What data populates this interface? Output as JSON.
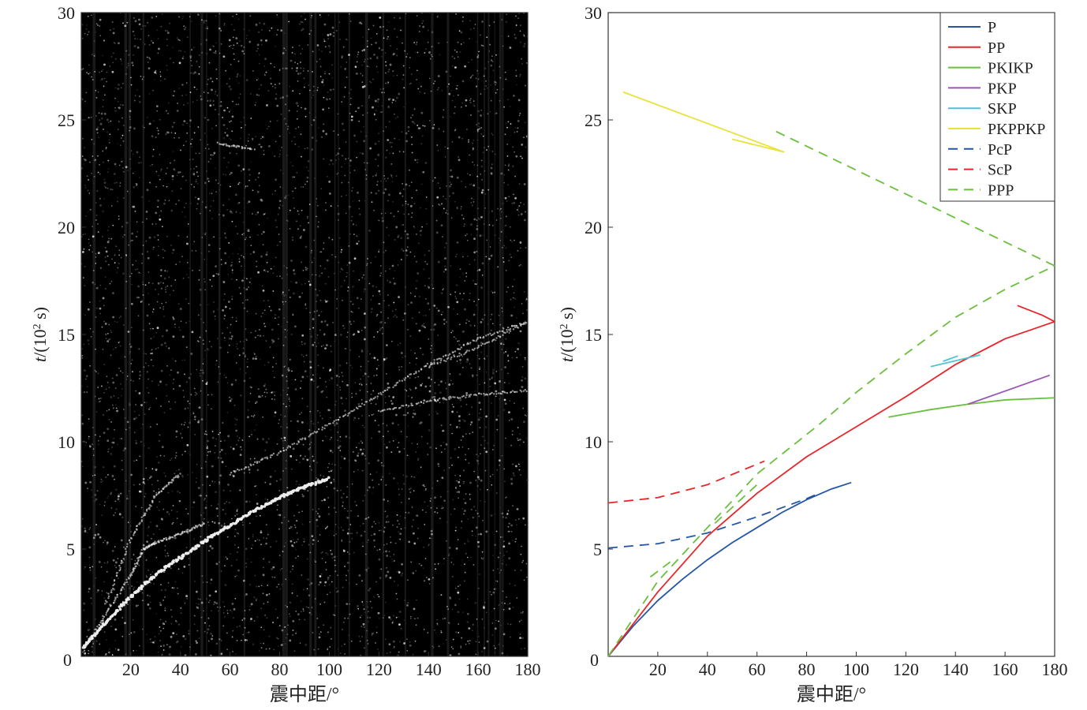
{
  "chart_data": [
    {
      "type": "heatmap",
      "title": "",
      "xlabel": "震中距/°",
      "ylabel_italic": "t",
      "ylabel_rest": "/(10",
      "ylabel_sup": "2",
      "ylabel_end": " s)",
      "xlim": [
        0,
        180
      ],
      "ylim": [
        0,
        30
      ],
      "xticks": [
        20,
        40,
        60,
        80,
        100,
        120,
        140,
        160,
        180
      ],
      "yticks": [
        0,
        5,
        10,
        15,
        20,
        25,
        30
      ],
      "background": "#000000",
      "bright_tracks": [
        [
          [
            1,
            0.4
          ],
          [
            10,
            1.6
          ],
          [
            20,
            2.8
          ],
          [
            30,
            3.8
          ],
          [
            40,
            4.6
          ],
          [
            50,
            5.4
          ],
          [
            60,
            6.1
          ],
          [
            70,
            6.8
          ],
          [
            80,
            7.4
          ],
          [
            90,
            7.9
          ],
          [
            100,
            8.3
          ]
        ],
        [
          [
            1,
            0.3
          ],
          [
            10,
            2.0
          ],
          [
            20,
            3.8
          ],
          [
            25,
            5.0
          ],
          [
            30,
            5.3
          ],
          [
            40,
            5.7
          ],
          [
            50,
            6.2
          ]
        ],
        [
          [
            10,
            2.5
          ],
          [
            20,
            5.5
          ],
          [
            30,
            7.5
          ],
          [
            40,
            8.5
          ]
        ],
        [
          [
            120,
            11.4
          ],
          [
            140,
            11.9
          ],
          [
            160,
            12.2
          ],
          [
            180,
            12.4
          ]
        ],
        [
          [
            60,
            8.5
          ],
          [
            80,
            9.5
          ],
          [
            100,
            10.8
          ],
          [
            120,
            12.2
          ],
          [
            140,
            13.6
          ],
          [
            160,
            14.8
          ],
          [
            180,
            15.6
          ]
        ],
        [
          [
            140,
            13.5
          ],
          [
            160,
            14.4
          ],
          [
            180,
            15.6
          ]
        ],
        [
          [
            55,
            23.9
          ],
          [
            70,
            23.6
          ]
        ]
      ]
    },
    {
      "type": "line",
      "title": "",
      "xlabel": "震中距/°",
      "ylabel_italic": "t",
      "ylabel_rest": "/(10",
      "ylabel_sup": "2",
      "ylabel_end": " s)",
      "xlim": [
        0,
        180
      ],
      "ylim": [
        0,
        30
      ],
      "xticks": [
        20,
        40,
        60,
        80,
        100,
        120,
        140,
        160,
        180
      ],
      "yticks": [
        0,
        5,
        10,
        15,
        20,
        25,
        30
      ],
      "legend_position": "top-right",
      "series": [
        {
          "name": "P",
          "color": "#2456a6",
          "dash": false,
          "segments": [
            [
              [
                0,
                0
              ],
              [
                10,
                1.4
              ],
              [
                20,
                2.6
              ],
              [
                30,
                3.6
              ],
              [
                40,
                4.5
              ],
              [
                50,
                5.3
              ],
              [
                60,
                6.0
              ],
              [
                70,
                6.7
              ],
              [
                80,
                7.3
              ],
              [
                90,
                7.8
              ],
              [
                98,
                8.1
              ]
            ]
          ]
        },
        {
          "name": "PP",
          "color": "#e8262a",
          "dash": false,
          "segments": [
            [
              [
                0,
                0
              ],
              [
                20,
                3.0
              ],
              [
                40,
                5.6
              ],
              [
                60,
                7.6
              ],
              [
                80,
                9.3
              ],
              [
                100,
                10.7
              ],
              [
                120,
                12.1
              ],
              [
                140,
                13.6
              ],
              [
                160,
                14.8
              ],
              [
                180,
                15.6
              ]
            ],
            [
              [
                165,
                16.35
              ],
              [
                175,
                15.9
              ],
              [
                180,
                15.6
              ]
            ]
          ]
        },
        {
          "name": "PKIKP",
          "color": "#6abf3e",
          "dash": false,
          "segments": [
            [
              [
                113,
                11.15
              ],
              [
                130,
                11.5
              ],
              [
                145,
                11.75
              ],
              [
                160,
                11.95
              ],
              [
                180,
                12.05
              ]
            ]
          ]
        },
        {
          "name": "PKP",
          "color": "#9b55b8",
          "dash": false,
          "segments": [
            [
              [
                145,
                11.75
              ],
              [
                178,
                13.1
              ]
            ]
          ]
        },
        {
          "name": "SKP",
          "color": "#4fc3d3",
          "dash": false,
          "segments": [
            [
              [
                130,
                13.5
              ],
              [
                150,
                14.05
              ]
            ],
            [
              [
                135,
                13.75
              ],
              [
                141,
                14.0
              ]
            ]
          ]
        },
        {
          "name": "PKPPKP",
          "color": "#e8e23a",
          "dash": false,
          "segments": [
            [
              [
                6,
                26.3
              ],
              [
                71,
                23.5
              ]
            ],
            [
              [
                50,
                24.1
              ],
              [
                71,
                23.5
              ]
            ]
          ]
        },
        {
          "name": "PcP",
          "color": "#2456a6",
          "dash": true,
          "segments": [
            [
              [
                0,
                5.05
              ],
              [
                20,
                5.25
              ],
              [
                40,
                5.75
              ],
              [
                60,
                6.5
              ],
              [
                80,
                7.35
              ],
              [
                85,
                7.6
              ]
            ]
          ]
        },
        {
          "name": "ScP",
          "color": "#e8262a",
          "dash": true,
          "segments": [
            [
              [
                0,
                7.15
              ],
              [
                20,
                7.4
              ],
              [
                40,
                8.0
              ],
              [
                63,
                9.1
              ]
            ]
          ]
        },
        {
          "name": "PPP",
          "color": "#6abf3e",
          "dash": true,
          "segments": [
            [
              [
                0,
                0
              ],
              [
                20,
                3.5
              ],
              [
                40,
                6.0
              ],
              [
                60,
                8.5
              ],
              [
                85,
                10.8
              ],
              [
                100,
                12.3
              ],
              [
                120,
                14.1
              ],
              [
                140,
                15.8
              ],
              [
                160,
                17.1
              ],
              [
                180,
                18.2
              ]
            ],
            [
              [
                180,
                18.2
              ],
              [
                67,
                24.5
              ]
            ],
            [
              [
                17,
                3.7
              ],
              [
                25,
                4.4
              ]
            ],
            [
              [
                43,
                6.2
              ],
              [
                60,
                8.0
              ]
            ]
          ]
        }
      ]
    }
  ]
}
